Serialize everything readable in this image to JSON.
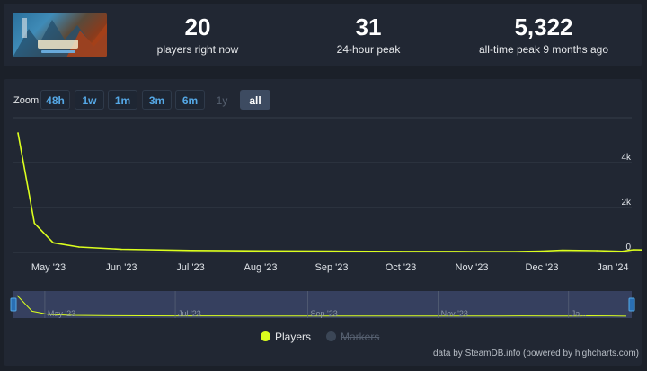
{
  "stats": [
    {
      "value": "20",
      "label": "players right now"
    },
    {
      "value": "31",
      "label": "24-hour peak"
    },
    {
      "value": "5,322",
      "label": "all-time peak 9 months ago"
    }
  ],
  "zoom": {
    "label": "Zoom",
    "buttons": [
      {
        "label": "48h",
        "state": "enabled"
      },
      {
        "label": "1w",
        "state": "enabled"
      },
      {
        "label": "1m",
        "state": "enabled"
      },
      {
        "label": "3m",
        "state": "enabled"
      },
      {
        "label": "6m",
        "state": "enabled"
      },
      {
        "label": "1y",
        "state": "disabled"
      },
      {
        "label": "all",
        "state": "active"
      }
    ]
  },
  "colors": {
    "players": "#dcff1e",
    "markers": "#3b4656",
    "grid": "#353d4a",
    "axis_text": "#dfe3e8",
    "navigator_bg": "#3a4468"
  },
  "chart_data": {
    "type": "line",
    "x_axis": "date",
    "x_ticks": [
      "May '23",
      "Jun '23",
      "Jul '23",
      "Aug '23",
      "Sep '23",
      "Oct '23",
      "Nov '23",
      "Dec '23",
      "Jan '24"
    ],
    "y_ticks": [
      0,
      2000,
      4000
    ],
    "y_tick_labels": [
      "0",
      "2k",
      "4k"
    ],
    "ylim": [
      0,
      6000
    ],
    "grid": true,
    "legend_position": "bottom-center",
    "series": [
      {
        "name": "Players",
        "visible": true,
        "points": [
          {
            "x": "2023-04-18",
            "y": 5322
          },
          {
            "x": "2023-04-25",
            "y": 1300
          },
          {
            "x": "2023-05-03",
            "y": 430
          },
          {
            "x": "2023-05-14",
            "y": 240
          },
          {
            "x": "2023-06-01",
            "y": 140
          },
          {
            "x": "2023-07-01",
            "y": 90
          },
          {
            "x": "2023-08-01",
            "y": 70
          },
          {
            "x": "2023-09-01",
            "y": 55
          },
          {
            "x": "2023-10-01",
            "y": 45
          },
          {
            "x": "2023-11-01",
            "y": 40
          },
          {
            "x": "2023-11-20",
            "y": 35
          },
          {
            "x": "2023-12-01",
            "y": 60
          },
          {
            "x": "2023-12-10",
            "y": 95
          },
          {
            "x": "2023-12-25",
            "y": 80
          },
          {
            "x": "2024-01-05",
            "y": 50
          },
          {
            "x": "2024-01-10",
            "y": 120
          },
          {
            "x": "2024-01-20",
            "y": 100
          },
          {
            "x": "2024-01-28",
            "y": 20
          }
        ]
      },
      {
        "name": "Markers",
        "visible": false,
        "points": []
      }
    ],
    "navigator_ticks": [
      "May '23",
      "Jul '23",
      "Sep '23",
      "Nov '23",
      "Ja..."
    ]
  },
  "credits": "data by SteamDB.info (powered by highcharts.com)"
}
